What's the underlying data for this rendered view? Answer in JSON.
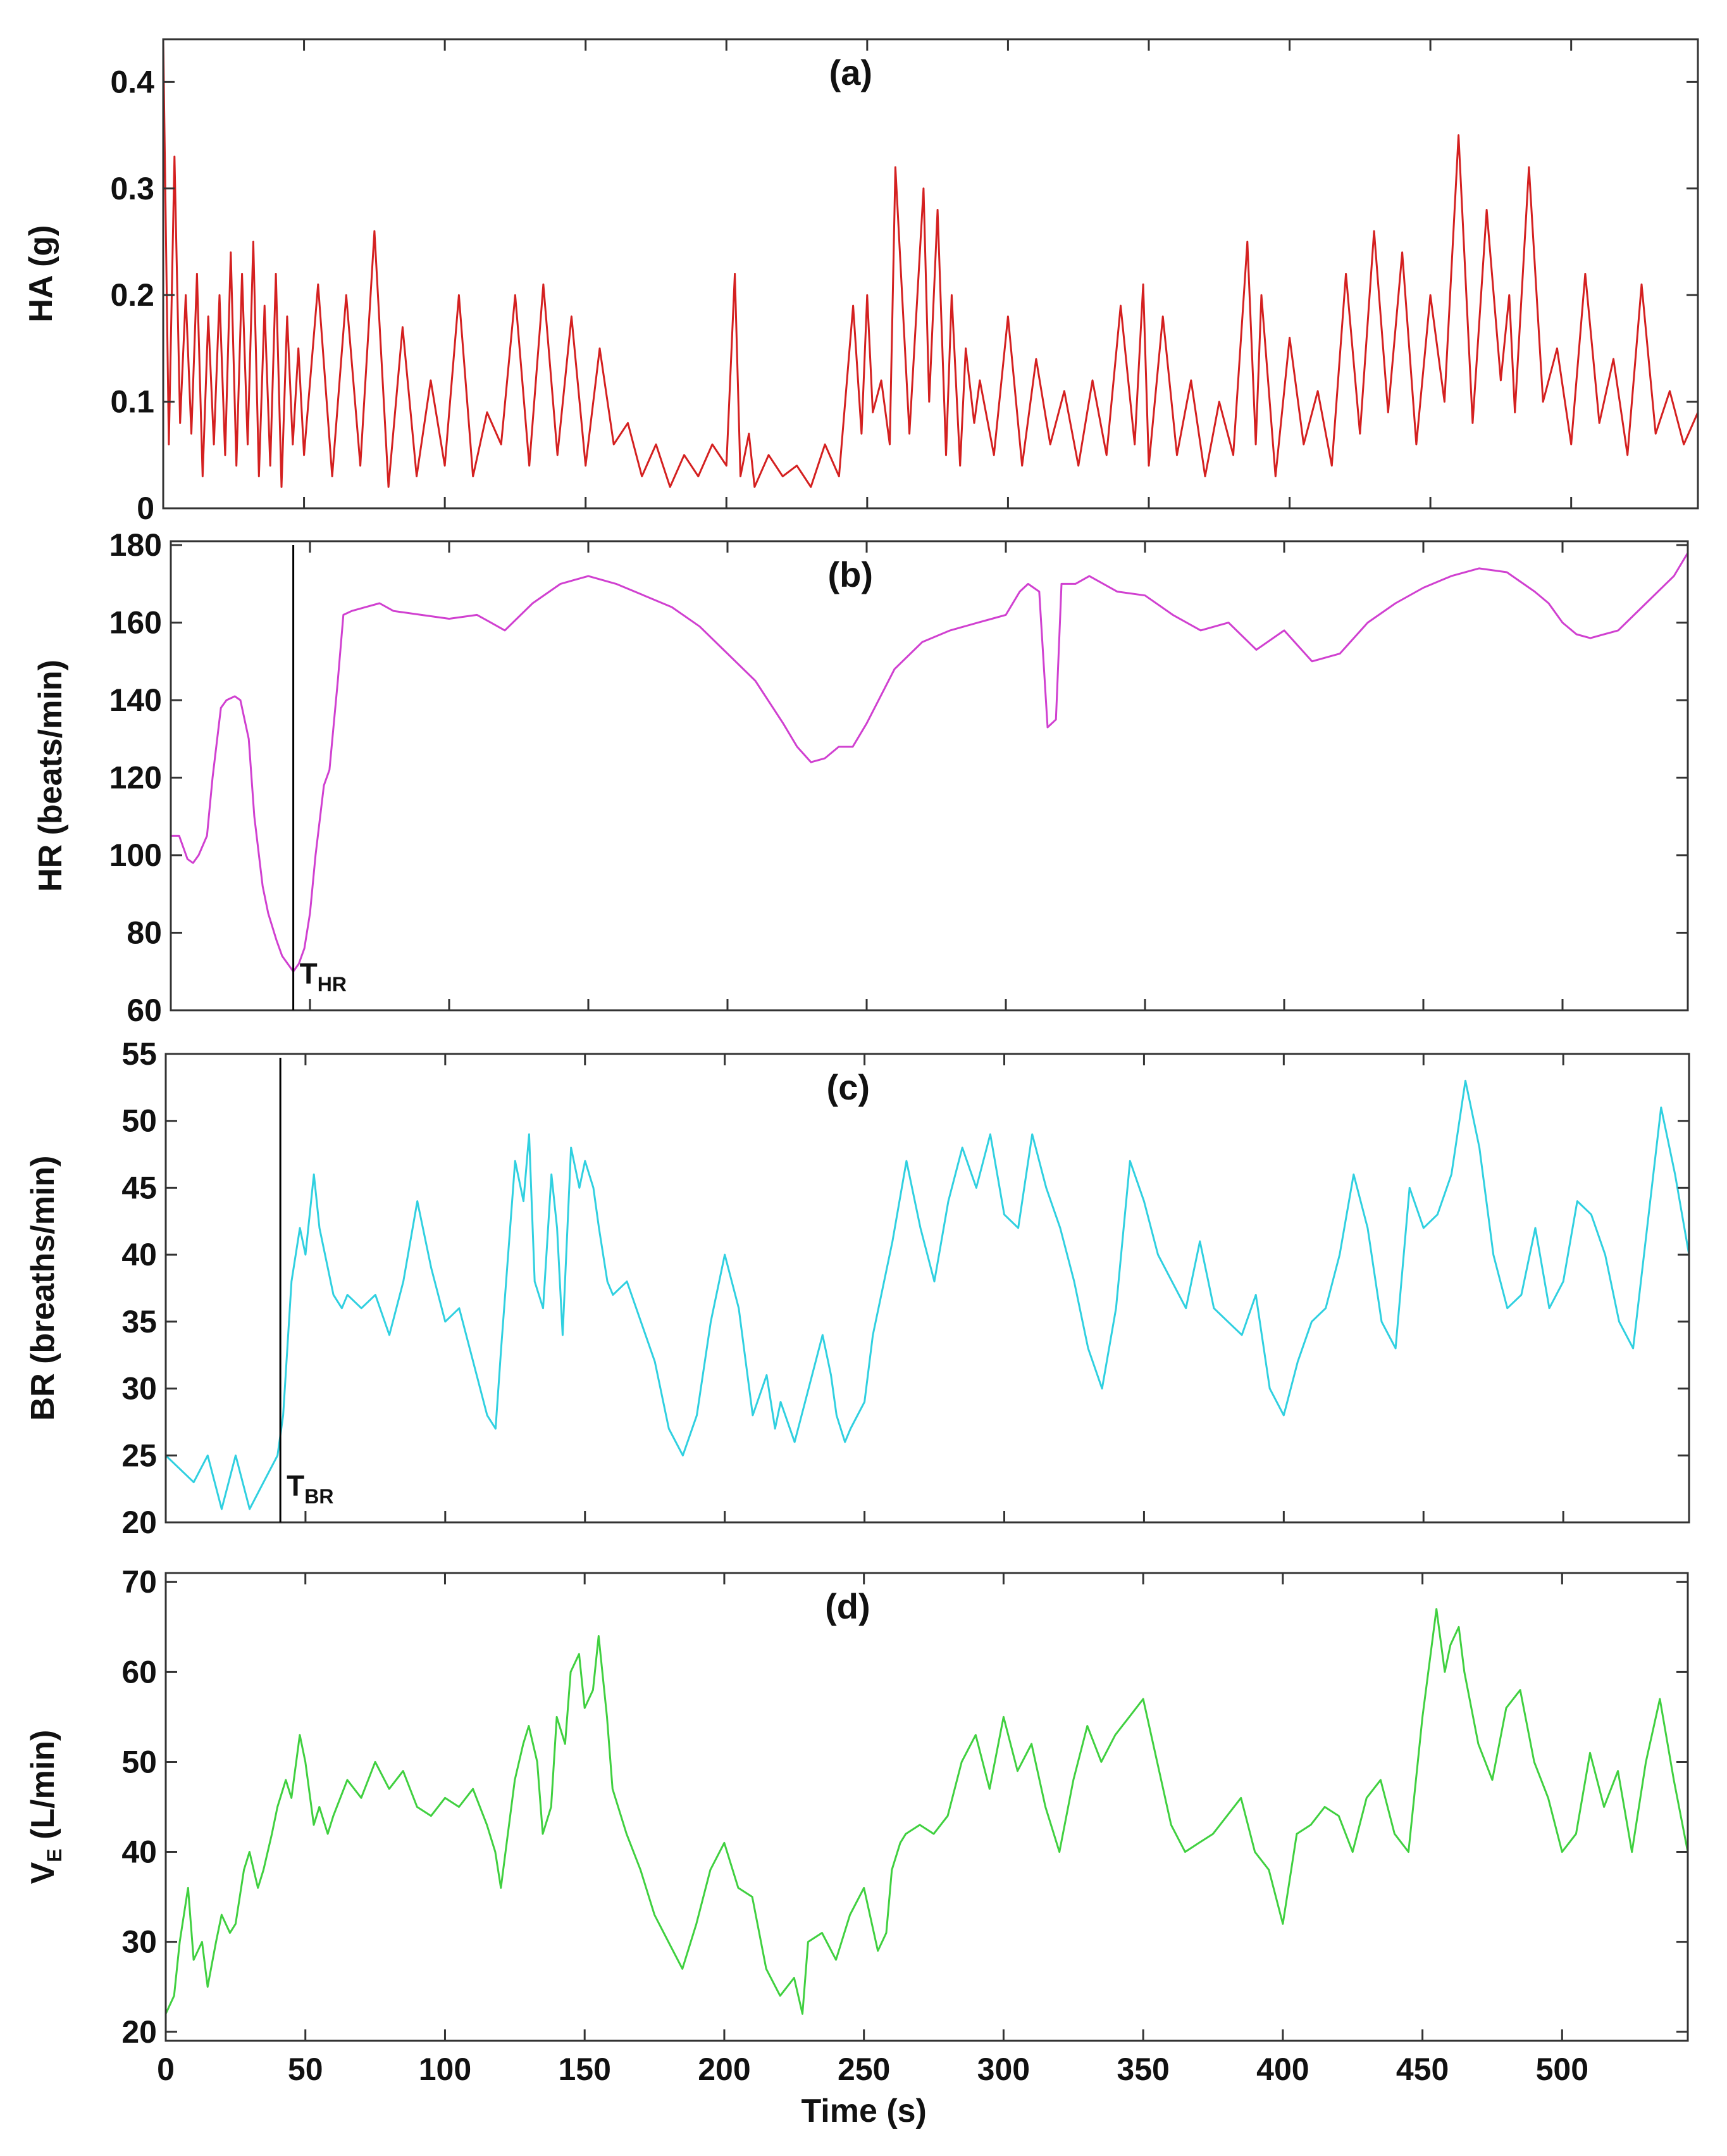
{
  "chart_data": [
    {
      "id": "a",
      "type": "line",
      "panel_label": "(a)",
      "ylabel": "HA (g)",
      "ylabel_sub": "",
      "ylabel_suffix": "",
      "xlabel": "",
      "xlim": [
        0,
        545
      ],
      "ylim": [
        0,
        0.44
      ],
      "yticks": [
        0,
        0.1,
        0.2,
        0.3,
        0.4
      ],
      "ytick_labels": [
        "0",
        "0.1",
        "0.2",
        "0.3",
        "0.4"
      ],
      "color": "#d42020",
      "marker": null,
      "series": [
        {
          "name": "HA",
          "x": [
            0,
            2,
            4,
            6,
            8,
            10,
            12,
            14,
            16,
            18,
            20,
            22,
            24,
            26,
            28,
            30,
            32,
            34,
            36,
            38,
            40,
            42,
            44,
            46,
            48,
            50,
            55,
            60,
            65,
            70,
            75,
            80,
            85,
            90,
            95,
            100,
            105,
            110,
            115,
            120,
            125,
            130,
            135,
            140,
            145,
            150,
            155,
            160,
            165,
            170,
            175,
            180,
            185,
            190,
            195,
            200,
            203,
            205,
            208,
            210,
            215,
            220,
            225,
            230,
            235,
            240,
            245,
            248,
            250,
            252,
            255,
            258,
            260,
            265,
            270,
            272,
            275,
            278,
            280,
            283,
            285,
            288,
            290,
            295,
            300,
            305,
            310,
            315,
            320,
            325,
            330,
            335,
            340,
            345,
            348,
            350,
            355,
            360,
            365,
            370,
            375,
            380,
            385,
            388,
            390,
            395,
            400,
            405,
            410,
            415,
            420,
            425,
            430,
            435,
            440,
            445,
            450,
            455,
            460,
            465,
            470,
            475,
            478,
            480,
            485,
            490,
            495,
            500,
            505,
            510,
            515,
            520,
            525,
            530,
            535,
            540,
            545
          ],
          "values": [
            0.44,
            0.06,
            0.33,
            0.08,
            0.2,
            0.07,
            0.22,
            0.03,
            0.18,
            0.06,
            0.2,
            0.05,
            0.24,
            0.04,
            0.22,
            0.06,
            0.25,
            0.03,
            0.19,
            0.04,
            0.22,
            0.02,
            0.18,
            0.06,
            0.15,
            0.05,
            0.21,
            0.03,
            0.2,
            0.04,
            0.26,
            0.02,
            0.17,
            0.03,
            0.12,
            0.04,
            0.2,
            0.03,
            0.09,
            0.06,
            0.2,
            0.04,
            0.21,
            0.05,
            0.18,
            0.04,
            0.15,
            0.06,
            0.08,
            0.03,
            0.06,
            0.02,
            0.05,
            0.03,
            0.06,
            0.04,
            0.22,
            0.03,
            0.07,
            0.02,
            0.05,
            0.03,
            0.04,
            0.02,
            0.06,
            0.03,
            0.19,
            0.07,
            0.2,
            0.09,
            0.12,
            0.06,
            0.32,
            0.07,
            0.3,
            0.1,
            0.28,
            0.05,
            0.2,
            0.04,
            0.15,
            0.08,
            0.12,
            0.05,
            0.18,
            0.04,
            0.14,
            0.06,
            0.11,
            0.04,
            0.12,
            0.05,
            0.19,
            0.06,
            0.21,
            0.04,
            0.18,
            0.05,
            0.12,
            0.03,
            0.1,
            0.05,
            0.25,
            0.06,
            0.2,
            0.03,
            0.16,
            0.06,
            0.11,
            0.04,
            0.22,
            0.07,
            0.26,
            0.09,
            0.24,
            0.06,
            0.2,
            0.1,
            0.35,
            0.08,
            0.28,
            0.12,
            0.2,
            0.09,
            0.32,
            0.1,
            0.15,
            0.06,
            0.22,
            0.08,
            0.14,
            0.05,
            0.21,
            0.07,
            0.11,
            0.06,
            0.09
          ]
        }
      ]
    },
    {
      "id": "b",
      "type": "line",
      "panel_label": "(b)",
      "ylabel": "HR (beats/min)",
      "ylabel_sub": "",
      "ylabel_suffix": "",
      "xlabel": "",
      "xlim": [
        0,
        545
      ],
      "ylim": [
        60,
        181
      ],
      "yticks": [
        60,
        80,
        100,
        120,
        140,
        160,
        180
      ],
      "ytick_labels": [
        "60",
        "80",
        "100",
        "120",
        "140",
        "160",
        "180"
      ],
      "color": "#d040d0",
      "marker": {
        "x": 44,
        "label": "T",
        "sub": "HR"
      },
      "series": [
        {
          "name": "HR",
          "x": [
            0,
            3,
            6,
            8,
            10,
            13,
            15,
            18,
            20,
            23,
            25,
            28,
            30,
            33,
            35,
            38,
            40,
            42,
            44,
            46,
            48,
            50,
            52,
            55,
            57,
            60,
            62,
            65,
            70,
            75,
            80,
            90,
            100,
            110,
            115,
            120,
            130,
            140,
            145,
            150,
            160,
            170,
            180,
            190,
            200,
            210,
            220,
            225,
            230,
            235,
            240,
            245,
            250,
            260,
            270,
            280,
            290,
            295,
            300,
            305,
            308,
            312,
            315,
            318,
            320,
            325,
            330,
            340,
            350,
            360,
            370,
            380,
            390,
            400,
            410,
            420,
            430,
            440,
            450,
            460,
            470,
            480,
            490,
            495,
            500,
            505,
            510,
            520,
            530,
            540,
            545
          ],
          "values": [
            105,
            105,
            99,
            98,
            100,
            105,
            120,
            138,
            140,
            141,
            140,
            130,
            110,
            92,
            85,
            78,
            74,
            72,
            70,
            72,
            76,
            85,
            100,
            118,
            122,
            145,
            162,
            163,
            164,
            165,
            163,
            162,
            161,
            162,
            160,
            158,
            165,
            170,
            171,
            172,
            170,
            167,
            164,
            159,
            152,
            145,
            134,
            128,
            124,
            125,
            128,
            128,
            134,
            148,
            155,
            158,
            160,
            161,
            162,
            168,
            170,
            168,
            133,
            135,
            170,
            170,
            172,
            168,
            167,
            162,
            158,
            160,
            153,
            158,
            150,
            152,
            160,
            165,
            169,
            172,
            174,
            173,
            168,
            165,
            160,
            157,
            156,
            158,
            165,
            172,
            178
          ]
        }
      ]
    },
    {
      "id": "c",
      "type": "line",
      "panel_label": "(c)",
      "ylabel": "BR (breaths/min)",
      "ylabel_sub": "",
      "ylabel_suffix": "",
      "xlabel": "",
      "xlim": [
        0,
        545
      ],
      "ylim": [
        20,
        55
      ],
      "yticks": [
        20,
        25,
        30,
        35,
        40,
        45,
        50,
        55
      ],
      "ytick_labels": [
        "20",
        "25",
        "30",
        "35",
        "40",
        "45",
        "50",
        "55"
      ],
      "color": "#30d0e0",
      "marker": {
        "x": 41,
        "label": "T",
        "sub": "BR"
      },
      "series": [
        {
          "name": "BR",
          "x": [
            0,
            5,
            10,
            15,
            20,
            25,
            30,
            35,
            40,
            42,
            45,
            48,
            50,
            53,
            55,
            60,
            63,
            65,
            70,
            75,
            80,
            85,
            90,
            95,
            100,
            105,
            110,
            115,
            118,
            120,
            125,
            128,
            130,
            132,
            135,
            138,
            140,
            142,
            145,
            148,
            150,
            153,
            155,
            158,
            160,
            165,
            170,
            175,
            180,
            185,
            190,
            195,
            200,
            205,
            210,
            215,
            218,
            220,
            225,
            230,
            235,
            238,
            240,
            243,
            245,
            250,
            253,
            255,
            260,
            265,
            270,
            275,
            280,
            285,
            290,
            295,
            300,
            305,
            310,
            315,
            320,
            325,
            330,
            335,
            340,
            345,
            350,
            355,
            360,
            365,
            370,
            375,
            380,
            385,
            390,
            395,
            400,
            405,
            410,
            415,
            420,
            425,
            430,
            435,
            440,
            445,
            450,
            455,
            460,
            465,
            470,
            475,
            480,
            485,
            490,
            495,
            500,
            505,
            510,
            515,
            520,
            525,
            530,
            535,
            540,
            545
          ],
          "values": [
            25,
            24,
            23,
            25,
            21,
            25,
            21,
            23,
            25,
            28,
            38,
            42,
            40,
            46,
            42,
            37,
            36,
            37,
            36,
            37,
            34,
            38,
            44,
            39,
            35,
            36,
            32,
            28,
            27,
            33,
            47,
            44,
            49,
            38,
            36,
            46,
            42,
            34,
            48,
            45,
            47,
            45,
            42,
            38,
            37,
            38,
            35,
            32,
            27,
            25,
            28,
            35,
            40,
            36,
            28,
            31,
            27,
            29,
            26,
            30,
            34,
            31,
            28,
            26,
            27,
            29,
            34,
            36,
            41,
            47,
            42,
            38,
            44,
            48,
            45,
            49,
            43,
            42,
            49,
            45,
            42,
            38,
            33,
            30,
            36,
            47,
            44,
            40,
            38,
            36,
            41,
            36,
            35,
            34,
            37,
            30,
            28,
            32,
            35,
            36,
            40,
            46,
            42,
            35,
            33,
            45,
            42,
            43,
            46,
            53,
            48,
            40,
            36,
            37,
            42,
            36,
            38,
            44,
            43,
            40,
            35,
            33,
            42,
            51,
            46,
            40
          ]
        }
      ]
    },
    {
      "id": "d",
      "type": "line",
      "panel_label": "(d)",
      "ylabel": "V",
      "ylabel_sub": "E",
      "ylabel_suffix": " (L/min)",
      "xlabel": "Time (s)",
      "xlim": [
        0,
        545
      ],
      "ylim": [
        19,
        71
      ],
      "yticks": [
        20,
        30,
        40,
        50,
        60,
        70
      ],
      "ytick_labels": [
        "20",
        "30",
        "40",
        "50",
        "60",
        "70"
      ],
      "xticks": [
        0,
        50,
        100,
        150,
        200,
        250,
        300,
        350,
        400,
        450,
        500
      ],
      "xtick_labels": [
        "0",
        "50",
        "100",
        "150",
        "200",
        "250",
        "300",
        "350",
        "400",
        "450",
        "500"
      ],
      "color": "#40d040",
      "marker": null,
      "series": [
        {
          "name": "VE",
          "x": [
            0,
            3,
            5,
            8,
            10,
            13,
            15,
            18,
            20,
            23,
            25,
            28,
            30,
            33,
            35,
            38,
            40,
            43,
            45,
            48,
            50,
            53,
            55,
            58,
            60,
            65,
            70,
            75,
            80,
            85,
            90,
            95,
            100,
            105,
            110,
            115,
            118,
            120,
            125,
            128,
            130,
            133,
            135,
            138,
            140,
            143,
            145,
            148,
            150,
            153,
            155,
            158,
            160,
            165,
            170,
            175,
            180,
            185,
            190,
            195,
            200,
            205,
            210,
            215,
            220,
            225,
            228,
            230,
            235,
            240,
            245,
            250,
            255,
            258,
            260,
            263,
            265,
            270,
            275,
            280,
            285,
            290,
            295,
            300,
            305,
            310,
            315,
            320,
            325,
            330,
            335,
            340,
            345,
            350,
            355,
            360,
            365,
            370,
            375,
            380,
            385,
            390,
            395,
            400,
            405,
            410,
            415,
            420,
            425,
            430,
            435,
            440,
            445,
            450,
            455,
            458,
            460,
            463,
            465,
            470,
            475,
            480,
            485,
            490,
            495,
            500,
            505,
            510,
            515,
            520,
            525,
            530,
            535,
            540,
            545
          ],
          "values": [
            22,
            24,
            30,
            36,
            28,
            30,
            25,
            30,
            33,
            31,
            32,
            38,
            40,
            36,
            38,
            42,
            45,
            48,
            46,
            53,
            50,
            43,
            45,
            42,
            44,
            48,
            46,
            50,
            47,
            49,
            45,
            44,
            46,
            45,
            47,
            43,
            40,
            36,
            48,
            52,
            54,
            50,
            42,
            45,
            55,
            52,
            60,
            62,
            56,
            58,
            64,
            55,
            47,
            42,
            38,
            33,
            30,
            27,
            32,
            38,
            41,
            36,
            35,
            27,
            24,
            26,
            22,
            30,
            31,
            28,
            33,
            36,
            29,
            31,
            38,
            41,
            42,
            43,
            42,
            44,
            50,
            53,
            47,
            55,
            49,
            52,
            45,
            40,
            48,
            54,
            50,
            53,
            55,
            57,
            50,
            43,
            40,
            41,
            42,
            44,
            46,
            40,
            38,
            32,
            42,
            43,
            45,
            44,
            40,
            46,
            48,
            42,
            40,
            55,
            67,
            60,
            63,
            65,
            60,
            52,
            48,
            56,
            58,
            50,
            46,
            40,
            42,
            51,
            45,
            49,
            40,
            50,
            57,
            48,
            40
          ]
        }
      ]
    }
  ]
}
